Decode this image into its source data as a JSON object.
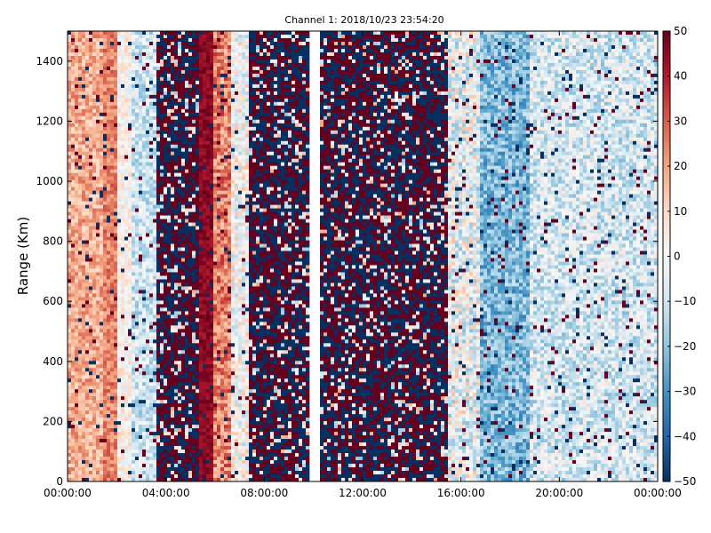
{
  "chart_data": {
    "type": "heatmap",
    "title": "Channel 1: 2018/10/23 23:54:20",
    "xlabel": "",
    "ylabel": "Range (Km)",
    "x_ticks": [
      "00:00:00",
      "04:00:00",
      "08:00:00",
      "12:00:00",
      "16:00:00",
      "20:00:00",
      "00:00:00"
    ],
    "x_tick_hours": [
      0,
      4,
      8,
      12,
      16,
      20,
      24
    ],
    "xlim_hours": [
      0,
      24
    ],
    "y_ticks": [
      "0",
      "200",
      "400",
      "600",
      "800",
      "1000",
      "1200",
      "1400"
    ],
    "y_tick_values": [
      0,
      200,
      400,
      600,
      800,
      1000,
      1200,
      1400
    ],
    "ylim": [
      0,
      1500
    ],
    "colorbar": {
      "min": -50,
      "max": 50,
      "ticks": [
        "50",
        "40",
        "30",
        "20",
        "10",
        "0",
        "−10",
        "−20",
        "−30",
        "−40",
        "−50"
      ],
      "tick_values": [
        50,
        40,
        30,
        20,
        10,
        0,
        -10,
        -20,
        -30,
        -40,
        -50
      ],
      "colormap": [
        "#67001f",
        "#b2182b",
        "#d6604d",
        "#f4a582",
        "#fddbc7",
        "#f7f7f7",
        "#d1e5f0",
        "#92c5de",
        "#4393c3",
        "#2166ac",
        "#053061"
      ]
    },
    "time_bands": [
      {
        "start_hour": 0.0,
        "end_hour": 1.4,
        "mean_value": 18,
        "noise": 10
      },
      {
        "start_hour": 1.4,
        "end_hour": 2.0,
        "mean_value": 25,
        "noise": 8
      },
      {
        "start_hour": 2.0,
        "end_hour": 2.6,
        "mean_value": 2,
        "noise": 10
      },
      {
        "start_hour": 2.6,
        "end_hour": 3.6,
        "mean_value": -10,
        "noise": 12
      },
      {
        "start_hour": 3.6,
        "end_hour": 5.3,
        "mean_value": 0,
        "noise": 50,
        "speckle": true
      },
      {
        "start_hour": 5.3,
        "end_hour": 6.0,
        "mean_value": 45,
        "noise": 5
      },
      {
        "start_hour": 6.0,
        "end_hour": 6.6,
        "mean_value": 25,
        "noise": 12
      },
      {
        "start_hour": 6.6,
        "end_hour": 7.4,
        "mean_value": 0,
        "noise": 15
      },
      {
        "start_hour": 7.4,
        "end_hour": 9.8,
        "mean_value": 0,
        "noise": 50,
        "speckle": true
      },
      {
        "start_hour": 9.8,
        "end_hour": 10.2,
        "gap": true
      },
      {
        "start_hour": 10.2,
        "end_hour": 15.4,
        "mean_value": 0,
        "noise": 50,
        "speckle": true
      },
      {
        "start_hour": 15.4,
        "end_hour": 16.8,
        "mean_value": -3,
        "noise": 18
      },
      {
        "start_hour": 16.8,
        "end_hour": 18.8,
        "mean_value": -22,
        "noise": 12
      },
      {
        "start_hour": 18.8,
        "end_hour": 24.0,
        "mean_value": -8,
        "noise": 14
      }
    ]
  }
}
